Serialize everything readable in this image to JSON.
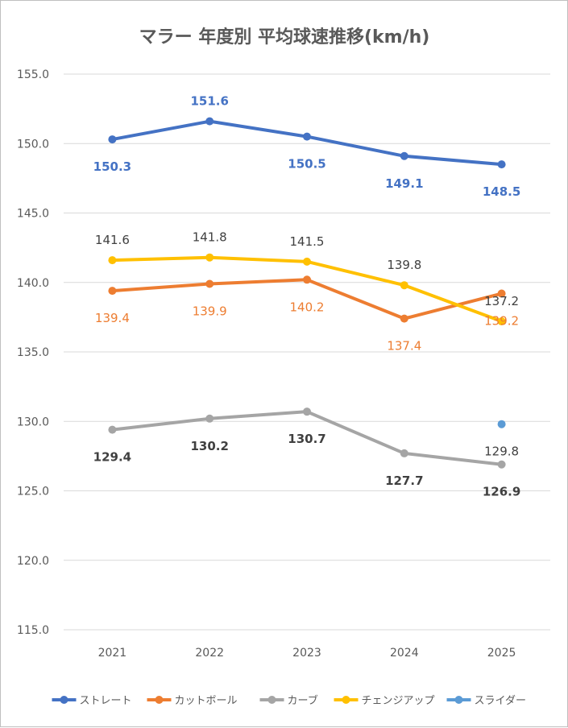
{
  "chart_data": {
    "type": "line",
    "title": "マラー 年度別 平均球速推移(km/h)",
    "xlabel": "",
    "ylabel": "",
    "categories": [
      "2021",
      "2022",
      "2023",
      "2024",
      "2025"
    ],
    "ylim": [
      115.0,
      155.0
    ],
    "ytick_step": 5.0,
    "yticks": [
      "115.0",
      "120.0",
      "125.0",
      "130.0",
      "135.0",
      "140.0",
      "145.0",
      "150.0",
      "155.0"
    ],
    "grid": true,
    "legend_position": "bottom",
    "series": [
      {
        "name": "ストレート",
        "color": "#4472C4",
        "values": [
          150.3,
          151.6,
          150.5,
          149.1,
          148.5
        ],
        "labels": [
          "150.3",
          "151.6",
          "150.5",
          "149.1",
          "148.5"
        ],
        "label_color": "#4472C4",
        "label_bold": true
      },
      {
        "name": "カットボール",
        "color": "#ED7D31",
        "values": [
          139.4,
          139.9,
          140.2,
          137.4,
          139.2
        ],
        "labels": [
          "139.4",
          "139.9",
          "140.2",
          "137.4",
          "139.2"
        ],
        "label_color": "#ED7D31",
        "label_bold": false
      },
      {
        "name": "カーブ",
        "color": "#A5A5A5",
        "values": [
          129.4,
          130.2,
          130.7,
          127.7,
          126.9
        ],
        "labels": [
          "129.4",
          "130.2",
          "130.7",
          "127.7",
          "126.9"
        ],
        "label_color": "#404040",
        "label_bold": true
      },
      {
        "name": "チェンジアップ",
        "color": "#FFC000",
        "values": [
          141.6,
          141.8,
          141.5,
          139.8,
          137.2
        ],
        "labels": [
          "141.6",
          "141.8",
          "141.5",
          "139.8",
          "137.2"
        ],
        "label_color": "#404040",
        "label_bold": false
      },
      {
        "name": "スライダー",
        "color": "#5B9BD5",
        "values": [
          null,
          null,
          null,
          null,
          129.8
        ],
        "labels": [
          "",
          "",
          "",
          "",
          "129.8"
        ],
        "label_color": "#404040",
        "label_bold": false
      }
    ]
  }
}
